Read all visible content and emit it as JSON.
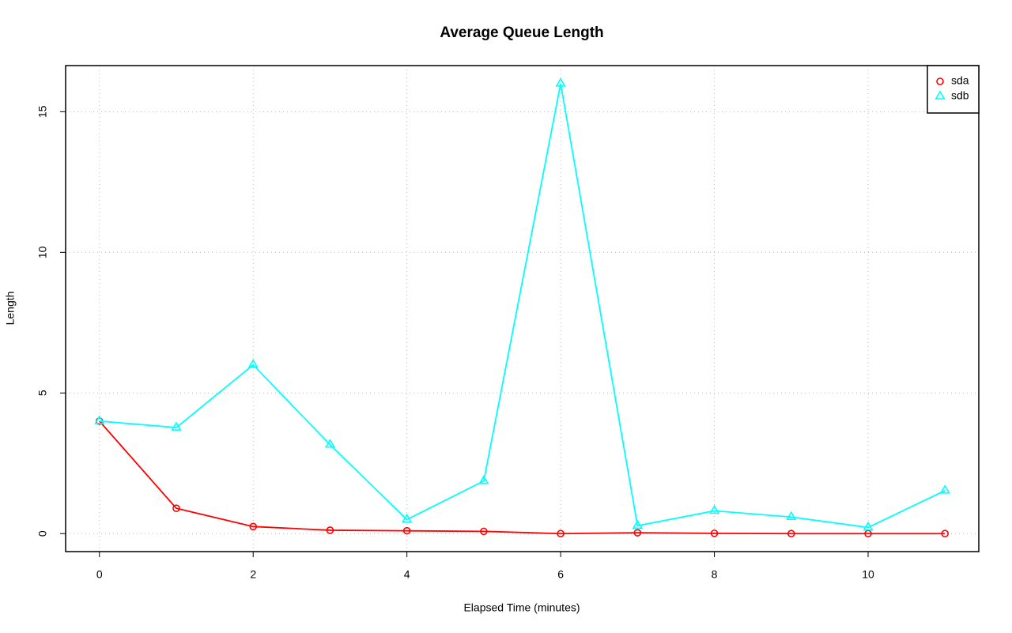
{
  "chart_data": {
    "type": "line",
    "title": "Average Queue Length",
    "x_label": "Elapsed Time (minutes)",
    "y_label": "Length",
    "x": [
      0,
      1,
      2,
      3,
      4,
      5,
      6,
      7,
      8,
      9,
      10,
      11
    ],
    "series": [
      {
        "name": "sda",
        "color": "#ff0000",
        "marker": "circle",
        "values": [
          4.0,
          0.9,
          0.25,
          0.12,
          0.1,
          0.08,
          0.0,
          0.03,
          0.01,
          0.0,
          0.0,
          0.0
        ]
      },
      {
        "name": "sdb",
        "color": "#00ffff",
        "marker": "triangle",
        "values": [
          4.0,
          3.77,
          6.0,
          3.16,
          0.5,
          1.87,
          16.0,
          0.28,
          0.81,
          0.59,
          0.22,
          1.53
        ]
      }
    ],
    "xlim": [
      -0.44,
      11.44
    ],
    "xticks": [
      0,
      2,
      4,
      6,
      8,
      10
    ],
    "ylim": [
      -0.64,
      16.64
    ],
    "yticks": [
      0,
      5,
      10,
      15
    ],
    "grid": true,
    "legend": "top-right"
  }
}
